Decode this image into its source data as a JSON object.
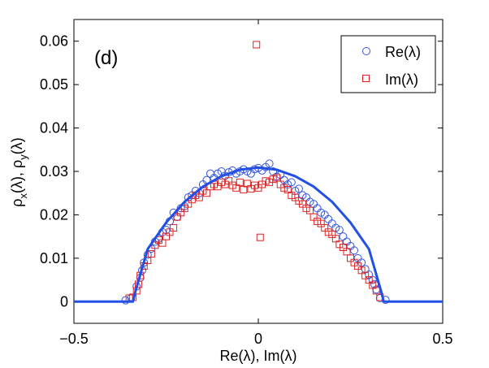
{
  "chart_data": {
    "type": "scatter",
    "panel_label": "(d)",
    "xlabel": "Re(λ), Im(λ)",
    "ylabel_main": "ρ",
    "ylabel_sub_x": "x",
    "ylabel_mid": "(λ), ρ",
    "ylabel_sub_y": "y",
    "ylabel_end": "(λ)",
    "xlim": [
      -0.5,
      0.5
    ],
    "ylim": [
      -0.005,
      0.065
    ],
    "x_ticks": [
      -0.5,
      0,
      0.5
    ],
    "x_tick_labels": [
      "−0.5",
      "0",
      "0.5"
    ],
    "y_ticks": [
      0,
      0.01,
      0.02,
      0.03,
      0.04,
      0.05,
      0.06
    ],
    "y_tick_labels": [
      "0",
      "0.01",
      "0.02",
      "0.03",
      "0.04",
      "0.05",
      "0.06"
    ],
    "legend": [
      {
        "label": "Re(λ)",
        "marker": "circle",
        "color": "#3355dd"
      },
      {
        "label": "Im(λ)",
        "marker": "square",
        "color": "#dd2222"
      }
    ],
    "line_color": "#2250e6",
    "line": {
      "x": [
        -0.5,
        -0.34,
        -0.333,
        -0.3,
        -0.25,
        -0.2,
        -0.15,
        -0.1,
        -0.05,
        0,
        0.05,
        0.1,
        0.15,
        0.2,
        0.25,
        0.3,
        0.333,
        0.34,
        0.5
      ],
      "y": [
        0,
        0,
        0.0024,
        0.0121,
        0.0182,
        0.023,
        0.0265,
        0.0289,
        0.0304,
        0.0309,
        0.0304,
        0.0289,
        0.0265,
        0.023,
        0.0182,
        0.0121,
        0.0024,
        0,
        0
      ]
    },
    "series": [
      {
        "name": "Re(λ)",
        "x": [
          -0.36,
          -0.345,
          -0.33,
          -0.32,
          -0.315,
          -0.31,
          -0.3,
          -0.29,
          -0.28,
          -0.27,
          -0.26,
          -0.25,
          -0.24,
          -0.23,
          -0.22,
          -0.21,
          -0.2,
          -0.19,
          -0.18,
          -0.17,
          -0.16,
          -0.15,
          -0.14,
          -0.13,
          -0.12,
          -0.11,
          -0.1,
          -0.09,
          -0.08,
          -0.07,
          -0.06,
          -0.05,
          -0.04,
          -0.03,
          -0.02,
          -0.01,
          0,
          0.01,
          0.02,
          0.03,
          0.04,
          0.05,
          0.06,
          0.07,
          0.08,
          0.09,
          0.1,
          0.11,
          0.12,
          0.13,
          0.14,
          0.15,
          0.16,
          0.17,
          0.18,
          0.19,
          0.2,
          0.21,
          0.22,
          0.23,
          0.24,
          0.25,
          0.26,
          0.27,
          0.28,
          0.29,
          0.3,
          0.31,
          0.315,
          0.32,
          0.33,
          0.345
        ],
        "y": [
          0.0003,
          0.0008,
          0.0035,
          0.0055,
          0.0072,
          0.009,
          0.0108,
          0.0122,
          0.0138,
          0.0145,
          0.016,
          0.0165,
          0.0185,
          0.0205,
          0.0195,
          0.0215,
          0.022,
          0.024,
          0.0245,
          0.0255,
          0.025,
          0.027,
          0.028,
          0.0295,
          0.0285,
          0.0295,
          0.03,
          0.029,
          0.0298,
          0.0302,
          0.0295,
          0.03,
          0.0305,
          0.03,
          0.0295,
          0.0305,
          0.0308,
          0.0302,
          0.031,
          0.0318,
          0.03,
          0.0288,
          0.0292,
          0.028,
          0.027,
          0.0275,
          0.0255,
          0.026,
          0.0245,
          0.024,
          0.023,
          0.0225,
          0.0215,
          0.0205,
          0.02,
          0.019,
          0.018,
          0.017,
          0.0165,
          0.015,
          0.0138,
          0.0128,
          0.0118,
          0.01,
          0.009,
          0.0075,
          0.0062,
          0.005,
          0.004,
          0.0028,
          0.0008,
          0.0004
        ]
      },
      {
        "name": "Im(λ)",
        "x": [
          -0.35,
          -0.34,
          -0.33,
          -0.325,
          -0.32,
          -0.31,
          -0.3,
          -0.29,
          -0.28,
          -0.27,
          -0.26,
          -0.25,
          -0.24,
          -0.23,
          -0.22,
          -0.21,
          -0.2,
          -0.19,
          -0.18,
          -0.17,
          -0.16,
          -0.15,
          -0.14,
          -0.13,
          -0.12,
          -0.11,
          -0.1,
          -0.09,
          -0.08,
          -0.07,
          -0.06,
          -0.05,
          -0.04,
          -0.03,
          -0.02,
          -0.01,
          0.0,
          0.01,
          0.02,
          0.03,
          0.04,
          0.05,
          0.06,
          0.07,
          0.08,
          0.09,
          0.1,
          0.11,
          0.12,
          0.13,
          0.14,
          0.15,
          0.16,
          0.17,
          0.18,
          0.19,
          0.2,
          0.21,
          0.22,
          0.23,
          0.24,
          0.25,
          0.26,
          0.27,
          0.28,
          0.29,
          0.3,
          0.31,
          0.32,
          0.33,
          -0.005,
          0.005
        ],
        "y": [
          0.0008,
          0.001,
          0.0025,
          0.004,
          0.006,
          0.0082,
          0.0095,
          0.011,
          0.013,
          0.0142,
          0.0135,
          0.015,
          0.016,
          0.017,
          0.0195,
          0.0205,
          0.0215,
          0.0225,
          0.0235,
          0.0245,
          0.024,
          0.0255,
          0.025,
          0.0265,
          0.027,
          0.0265,
          0.0275,
          0.027,
          0.0278,
          0.0268,
          0.0262,
          0.0275,
          0.0258,
          0.0272,
          0.026,
          0.0268,
          0.0262,
          0.027,
          0.0278,
          0.0275,
          0.0282,
          0.0285,
          0.027,
          0.0262,
          0.0258,
          0.0245,
          0.024,
          0.0232,
          0.0225,
          0.0215,
          0.021,
          0.0195,
          0.0185,
          0.018,
          0.017,
          0.016,
          0.0155,
          0.0145,
          0.0132,
          0.0125,
          0.0115,
          0.01,
          0.009,
          0.0082,
          0.0072,
          0.006,
          0.005,
          0.0038,
          0.0025,
          0.001,
          0.0592,
          0.0148
        ]
      }
    ]
  }
}
